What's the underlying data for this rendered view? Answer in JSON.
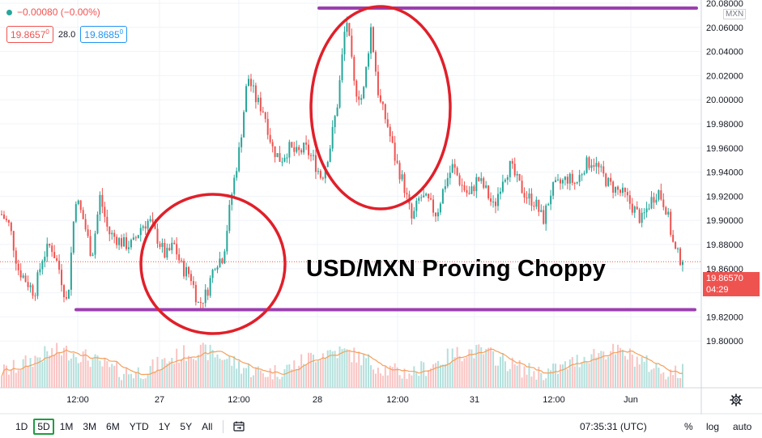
{
  "legend": {
    "change": "−0.00080 (−0.00%)",
    "bid": "19.8657",
    "bid_sup": "0",
    "spread": "28.0",
    "ask": "19.8685",
    "ask_sup": "0"
  },
  "currency": "MXN",
  "price_tag": {
    "price": "19.86570",
    "countdown": "04:29"
  },
  "annotation": "USD/MXN Proving Choppy",
  "toolbar": {
    "timeframes": [
      "1D",
      "5D",
      "1M",
      "3M",
      "6M",
      "YTD",
      "1Y",
      "5Y",
      "All"
    ],
    "active": "5D",
    "clock": "07:35:31 (UTC)",
    "percent": "%",
    "log": "log",
    "auto": "auto"
  },
  "colors": {
    "up": "#26a69a",
    "down": "#ef5350",
    "level_line": "#9c3fb0",
    "circle": "#e0202a",
    "volume_ma": "#f5a05a"
  },
  "chart_data": {
    "type": "candlestick",
    "title": "",
    "xlabel": "",
    "ylabel": "",
    "ylim": [
      19.78,
      20.08
    ],
    "yticks": [
      19.8,
      19.82,
      19.84,
      19.86,
      19.88,
      19.9,
      19.92,
      19.94,
      19.96,
      19.98,
      20.0,
      20.02,
      20.04,
      20.06,
      20.08
    ],
    "ytick_labels": [
      "19.80000",
      "19.82000",
      "19.84000",
      "19.86000",
      "19.88000",
      "19.90000",
      "19.92000",
      "19.94000",
      "19.96000",
      "19.98000",
      "20.00000",
      "20.02000",
      "20.04000",
      "20.06000",
      "20.08000"
    ],
    "xtick_labels": [
      "12:00",
      "27",
      "12:00",
      "28",
      "12:00",
      "31",
      "12:00",
      "Jun"
    ],
    "last_price": 19.8657,
    "resistance_level": 20.076,
    "support_level": 19.826,
    "price_path": [
      19.905,
      19.895,
      19.86,
      19.85,
      19.84,
      19.87,
      19.88,
      19.86,
      19.83,
      19.92,
      19.9,
      19.87,
      19.92,
      19.89,
      19.885,
      19.88,
      19.88,
      19.895,
      19.9,
      19.885,
      19.87,
      19.88,
      19.86,
      19.855,
      19.83,
      19.84,
      19.865,
      19.87,
      19.92,
      19.96,
      20.02,
      20.0,
      19.99,
      19.96,
      19.95,
      19.96,
      19.955,
      19.96,
      19.95,
      19.935,
      19.96,
      20.0,
      20.07,
      20.01,
      20.0,
      20.06,
      20.0,
      19.98,
      19.95,
      19.93,
      19.9,
      19.92,
      19.915,
      19.905,
      19.93,
      19.945,
      19.93,
      19.92,
      19.935,
      19.925,
      19.91,
      19.935,
      19.945,
      19.93,
      19.92,
      19.915,
      19.9,
      19.925,
      19.93,
      19.935,
      19.93,
      19.945,
      19.95,
      19.94,
      19.93,
      19.925,
      19.92,
      19.91,
      19.9,
      19.915,
      19.925,
      19.91,
      19.875,
      19.8657
    ]
  }
}
